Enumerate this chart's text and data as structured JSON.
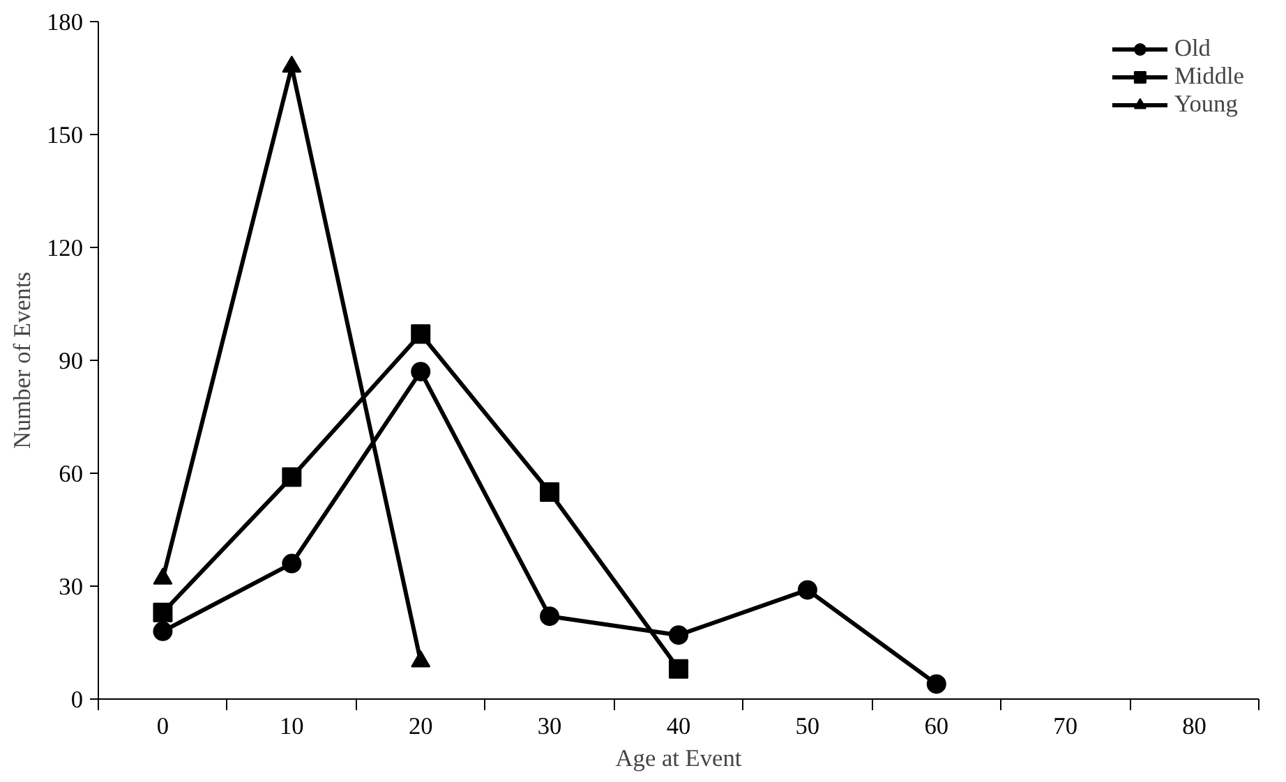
{
  "chart_data": {
    "type": "line",
    "xlabel": "Age at Event",
    "ylabel": "Number of Events",
    "categories": [
      "0",
      "10",
      "20",
      "30",
      "40",
      "50",
      "60",
      "70",
      "80"
    ],
    "series": [
      {
        "name": "Old",
        "color": "#000000",
        "marker": "circle",
        "values": [
          18,
          36,
          87,
          22,
          17,
          29,
          4,
          null,
          null
        ]
      },
      {
        "name": "Middle",
        "color": "#000000",
        "marker": "square",
        "values": [
          23,
          59,
          97,
          55,
          8,
          null,
          null,
          null,
          null
        ]
      },
      {
        "name": "Young",
        "color": "#000000",
        "marker": "triangle",
        "values": [
          32,
          168,
          10,
          null,
          null,
          null,
          null,
          null,
          null
        ]
      }
    ],
    "ylim": [
      0,
      180
    ],
    "yticks": [
      0,
      30,
      60,
      90,
      120,
      150,
      180
    ],
    "grid": false,
    "legend": "top right",
    "line_style": "solid"
  }
}
